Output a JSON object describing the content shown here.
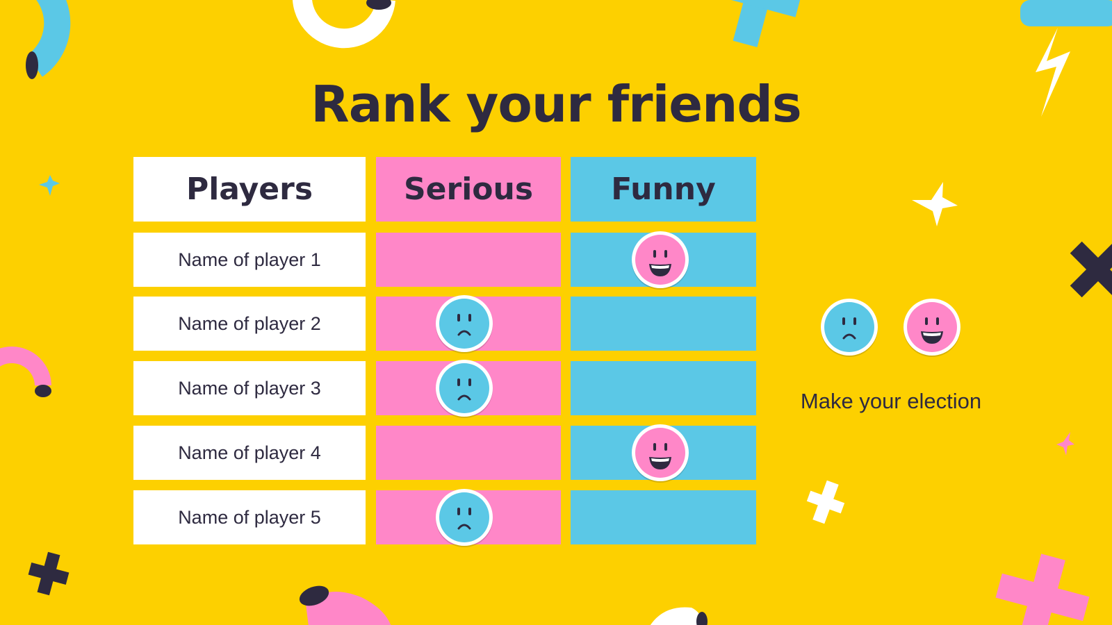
{
  "title": "Rank your friends",
  "colors": {
    "background": "#FDD000",
    "serious": "#FF87C8",
    "funny": "#5BC8E6",
    "text": "#2E2A40"
  },
  "table": {
    "headers": [
      "Players",
      "Serious",
      "Funny"
    ],
    "rows": [
      {
        "name": "Name of player 1",
        "column": "Funny",
        "icon": "happy-face-icon"
      },
      {
        "name": "Name of player 2",
        "column": "Serious",
        "icon": "sad-face-icon"
      },
      {
        "name": "Name of player 3",
        "column": "Serious",
        "icon": "sad-face-icon"
      },
      {
        "name": "Name of player 4",
        "column": "Funny",
        "icon": "happy-face-icon"
      },
      {
        "name": "Name of player 5",
        "column": "Serious",
        "icon": "sad-face-icon"
      }
    ]
  },
  "legend": {
    "icons": [
      "sad-face-icon",
      "happy-face-icon"
    ],
    "text": "Make your election"
  }
}
